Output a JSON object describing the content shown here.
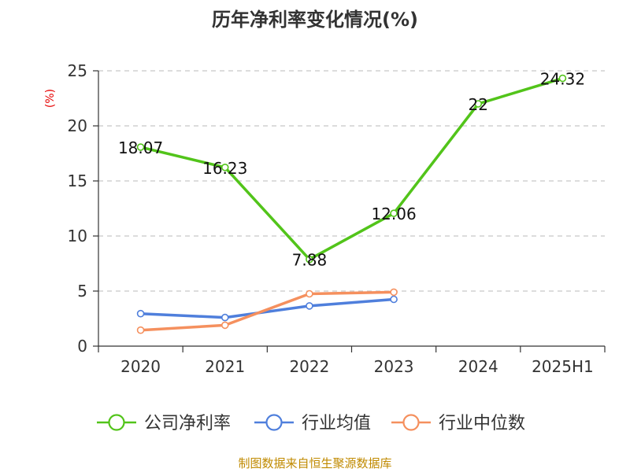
{
  "chart_data": {
    "type": "line",
    "title": "历年净利率变化情况(%)",
    "ylabel": "(%)",
    "xlabel": "",
    "categories": [
      "2020",
      "2021",
      "2022",
      "2023",
      "2024",
      "2025H1"
    ],
    "ylim": [
      0,
      25
    ],
    "yticks": [
      0,
      5,
      10,
      15,
      20,
      25
    ],
    "grid": true,
    "legend_position": "bottom",
    "series": [
      {
        "name": "公司净利率",
        "color": "#52c41a",
        "values": [
          18.07,
          16.23,
          7.88,
          12.06,
          22,
          24.32
        ],
        "labels": [
          "18.07",
          "16.23",
          "7.88",
          "12.06",
          "22",
          "24.32"
        ]
      },
      {
        "name": "行业均值",
        "color": "#4f7fdc",
        "values": [
          2.95,
          2.6,
          3.65,
          4.25,
          null,
          null
        ]
      },
      {
        "name": "行业中位数",
        "color": "#f5905e",
        "values": [
          1.45,
          1.9,
          4.75,
          4.9,
          null,
          null
        ]
      }
    ]
  },
  "source": "制图数据来自恒生聚源数据库"
}
